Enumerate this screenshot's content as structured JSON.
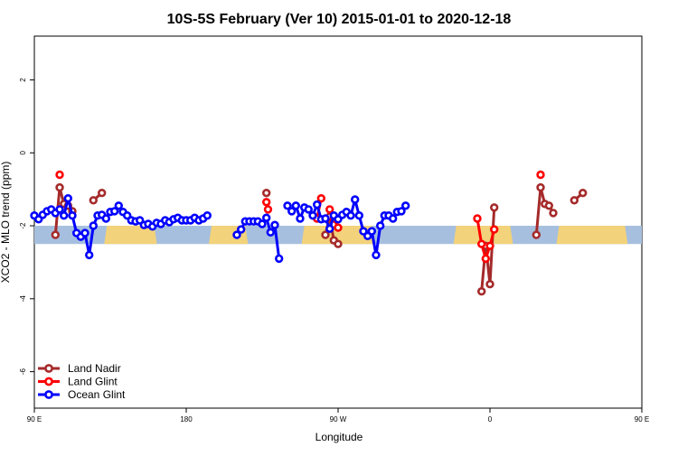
{
  "chart_data": {
    "type": "line",
    "title": "10S-5S February (Ver 10)   2015-01-01 to 2020-12-18",
    "xlabel": "Longitude",
    "ylabel": "XCO2 - MLO trend (ppm)",
    "xlim": [
      90,
      450
    ],
    "ylim": [
      -7,
      3.2
    ],
    "x_ticks": [
      {
        "value": 90,
        "label": "90 E"
      },
      {
        "value": 180,
        "label": "180"
      },
      {
        "value": 270,
        "label": "90 W"
      },
      {
        "value": 360,
        "label": "0"
      },
      {
        "value": 450,
        "label": "90 E"
      },
      {
        "value": 540,
        "label": "180"
      }
    ],
    "y_ticks": [
      {
        "value": 2,
        "label": "2"
      },
      {
        "value": 0,
        "label": "0"
      },
      {
        "value": -2,
        "label": "-2"
      },
      {
        "value": -4,
        "label": "-4"
      },
      {
        "value": -6,
        "label": "-6"
      }
    ],
    "grid": false,
    "legend_position": "bottom-left",
    "land_band": {
      "y_center": -2.25,
      "height": 0.25,
      "ocean_color": "#a6bfde",
      "land_color": "#f2d27a"
    },
    "land_band_land_ranges": [
      [
        161,
        133
      ],
      [
        195,
        215
      ],
      [
        250,
        290
      ],
      [
        340,
        372
      ],
      [
        401,
        440
      ]
    ],
    "series": [
      {
        "name": "Land Nadir",
        "color": "#a52a2a",
        "segments": [
          [
            [
              102.5,
              -2.25
            ],
            [
              105,
              -0.95
            ],
            [
              107.5,
              -1.4
            ],
            [
              110,
              -1.45
            ],
            [
              112.5,
              -1.6
            ]
          ],
          [
            [
              130,
              -1.1
            ],
            [
              125,
              -1.3
            ]
          ],
          [
            [
              227.5,
              -1.1
            ]
          ],
          [
            [
              262.5,
              -2.25
            ],
            [
              265,
              -1.75
            ],
            [
              267.5,
              -2.4
            ],
            [
              270,
              -2.5
            ]
          ],
          [
            [
              355,
              -3.8
            ],
            [
              357.5,
              -2.55
            ],
            [
              360,
              -3.6
            ],
            [
              362.5,
              -1.5
            ]
          ],
          [
            [
              387.5,
              -2.25
            ],
            [
              390,
              -0.95
            ],
            [
              392.5,
              -1.4
            ],
            [
              395,
              -1.45
            ],
            [
              397.5,
              -1.65
            ]
          ],
          [
            [
              415,
              -1.1
            ],
            [
              410,
              -1.3
            ]
          ]
        ]
      },
      {
        "name": "Land Glint",
        "color": "#ff0000",
        "segments": [
          [
            [
              105,
              -0.6
            ]
          ],
          [
            [
              227.5,
              -1.35
            ],
            [
              228.5,
              -1.55
            ]
          ],
          [
            [
              257.5,
              -1.8
            ],
            [
              260,
              -1.25
            ]
          ],
          [
            [
              265,
              -1.55
            ],
            [
              267.5,
              -1.8
            ],
            [
              270,
              -2.05
            ]
          ],
          [
            [
              352.5,
              -1.8
            ],
            [
              355,
              -2.5
            ],
            [
              357.5,
              -2.9
            ],
            [
              360,
              -2.55
            ],
            [
              362.5,
              -2.1
            ]
          ],
          [
            [
              390,
              -0.6
            ]
          ]
        ]
      },
      {
        "name": "Ocean Glint",
        "color": "#0000ff",
        "segments": [
          [
            [
              90,
              -1.72
            ],
            [
              92.5,
              -1.82
            ],
            [
              95,
              -1.7
            ],
            [
              97.5,
              -1.6
            ],
            [
              100,
              -1.55
            ],
            [
              102.5,
              -1.65
            ],
            [
              105,
              -1.55
            ],
            [
              107.5,
              -1.72
            ],
            [
              110,
              -1.25
            ],
            [
              112.5,
              -1.72
            ],
            [
              115,
              -2.2
            ],
            [
              117.5,
              -2.3
            ],
            [
              120,
              -2.2
            ],
            [
              122.5,
              -2.8
            ],
            [
              125,
              -2.0
            ],
            [
              127.5,
              -1.72
            ],
            [
              130,
              -1.7
            ],
            [
              132.5,
              -1.8
            ],
            [
              135,
              -1.62
            ],
            [
              137.5,
              -1.6
            ],
            [
              140,
              -1.45
            ],
            [
              142.5,
              -1.62
            ],
            [
              145,
              -1.72
            ],
            [
              147.5,
              -1.85
            ],
            [
              150,
              -1.88
            ],
            [
              152.5,
              -1.85
            ],
            [
              155,
              -1.98
            ],
            [
              157.5,
              -1.95
            ],
            [
              160,
              -2.02
            ],
            [
              162.5,
              -1.92
            ],
            [
              165,
              -1.95
            ],
            [
              167.5,
              -1.85
            ],
            [
              170,
              -1.9
            ],
            [
              172.5,
              -1.82
            ],
            [
              175,
              -1.78
            ],
            [
              177.5,
              -1.85
            ],
            [
              180,
              -1.85
            ],
            [
              182.5,
              -1.85
            ],
            [
              185,
              -1.78
            ],
            [
              187.5,
              -1.85
            ],
            [
              190,
              -1.8
            ],
            [
              192.5,
              -1.72
            ]
          ],
          [
            [
              210,
              -2.25
            ],
            [
              212.5,
              -2.1
            ],
            [
              215,
              -1.88
            ],
            [
              217.5,
              -1.88
            ],
            [
              220,
              -1.88
            ],
            [
              222.5,
              -1.88
            ],
            [
              225,
              -1.95
            ],
            [
              227.5,
              -1.78
            ],
            [
              230,
              -2.18
            ],
            [
              232.5,
              -1.98
            ],
            [
              235,
              -2.9
            ]
          ],
          [
            [
              240,
              -1.45
            ],
            [
              242.5,
              -1.6
            ],
            [
              245,
              -1.45
            ],
            [
              247.5,
              -1.8
            ],
            [
              250,
              -1.5
            ],
            [
              252.5,
              -1.55
            ],
            [
              255,
              -1.72
            ],
            [
              257.5,
              -1.42
            ],
            [
              260,
              -1.82
            ],
            [
              262.5,
              -1.8
            ],
            [
              265,
              -2.08
            ],
            [
              267.5,
              -1.72
            ],
            [
              270,
              -1.82
            ],
            [
              272.5,
              -1.7
            ],
            [
              275,
              -1.62
            ],
            [
              277.5,
              -1.72
            ],
            [
              280,
              -1.28
            ],
            [
              282.5,
              -1.72
            ],
            [
              285,
              -2.15
            ],
            [
              287.5,
              -2.28
            ],
            [
              290,
              -2.15
            ],
            [
              292.5,
              -2.8
            ],
            [
              295,
              -2.0
            ],
            [
              297.5,
              -1.72
            ],
            [
              300,
              -1.72
            ],
            [
              302.5,
              -1.8
            ],
            [
              305,
              -1.62
            ],
            [
              307.5,
              -1.6
            ],
            [
              310,
              -1.45
            ]
          ]
        ]
      }
    ]
  }
}
